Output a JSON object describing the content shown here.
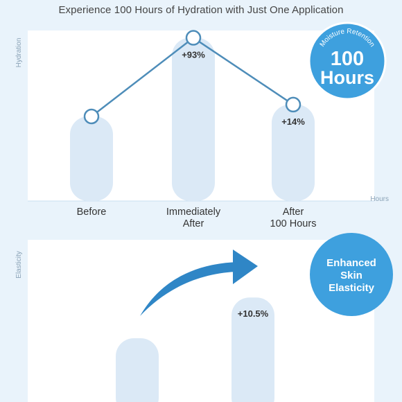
{
  "title": "Experience 100 Hours of Hydration with Just One Application",
  "colors": {
    "page_bg": "#e9f3fb",
    "panel_bg": "#ffffff",
    "bar": "#dbe9f6",
    "bar_edge": "#c9dff1",
    "line": "#4e8db9",
    "badge": "#3ea0de",
    "arrow": "#2f86c6",
    "text_dark": "#333333",
    "axis_text": "#8aa2b6"
  },
  "badges": {
    "retention": {
      "arc_text": "Moisture Retention",
      "line1": "100",
      "line2": "Hours"
    },
    "elasticity": {
      "line1": "Enhanced",
      "line2": "Skin",
      "line3": "Elasticity"
    }
  },
  "chart_data": [
    {
      "type": "bar",
      "ylabel": "Hydration",
      "xlabel": "Hours",
      "categories": [
        [
          "Before"
        ],
        [
          "Immediately",
          "After"
        ],
        [
          "After",
          "100 Hours"
        ]
      ],
      "values": [
        100,
        193,
        114
      ],
      "ylim": [
        0,
        200
      ],
      "labels": [
        "",
        "+93%",
        "+14%"
      ],
      "overlay": "line"
    },
    {
      "type": "bar",
      "ylabel": "Elasticity",
      "categories": [],
      "values": [
        100,
        110.5
      ],
      "labels": [
        "",
        "+10.5%"
      ],
      "annotation": "curved-arrow"
    }
  ]
}
